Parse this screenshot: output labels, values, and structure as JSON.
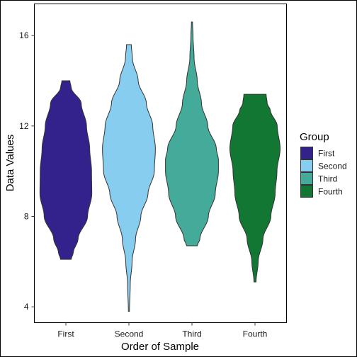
{
  "chart_data": {
    "type": "violin",
    "title": "",
    "xlabel": "Order of Sample",
    "ylabel": "Data Values",
    "ylim": [
      3.3,
      17.4
    ],
    "yticks": [
      4,
      8,
      12,
      16
    ],
    "categories": [
      "First",
      "Second",
      "Third",
      "Fourth"
    ],
    "legend": {
      "title": "Group",
      "position": "right"
    },
    "grid": false,
    "series": [
      {
        "name": "First",
        "color": "#33218C",
        "min": 6.1,
        "max": 14.0,
        "density": [
          [
            6.1,
            0.2
          ],
          [
            6.4,
            0.28
          ],
          [
            7.0,
            0.46
          ],
          [
            8.0,
            0.82
          ],
          [
            9.0,
            0.98
          ],
          [
            10.0,
            0.97
          ],
          [
            11.0,
            0.9
          ],
          [
            12.0,
            0.78
          ],
          [
            13.0,
            0.58
          ],
          [
            13.7,
            0.2
          ],
          [
            14.0,
            0.15
          ]
        ]
      },
      {
        "name": "Second",
        "color": "#87CDEF",
        "min": 3.8,
        "max": 15.6,
        "density": [
          [
            3.8,
            0.02
          ],
          [
            5.0,
            0.05
          ],
          [
            6.0,
            0.12
          ],
          [
            7.0,
            0.25
          ],
          [
            8.0,
            0.45
          ],
          [
            9.0,
            0.72
          ],
          [
            10.0,
            0.96
          ],
          [
            11.0,
            1.0
          ],
          [
            12.0,
            0.9
          ],
          [
            13.0,
            0.66
          ],
          [
            14.0,
            0.35
          ],
          [
            15.0,
            0.13
          ],
          [
            15.6,
            0.09
          ]
        ]
      },
      {
        "name": "Third",
        "color": "#44AA99",
        "min": 6.7,
        "max": 16.6,
        "density": [
          [
            6.7,
            0.2
          ],
          [
            7.0,
            0.3
          ],
          [
            8.0,
            0.62
          ],
          [
            9.0,
            0.88
          ],
          [
            10.0,
            1.0
          ],
          [
            10.5,
            1.0
          ],
          [
            11.0,
            0.92
          ],
          [
            12.0,
            0.6
          ],
          [
            13.0,
            0.36
          ],
          [
            14.0,
            0.2
          ],
          [
            15.0,
            0.08
          ],
          [
            16.0,
            0.04
          ],
          [
            16.6,
            0.02
          ]
        ]
      },
      {
        "name": "Fourth",
        "color": "#117733",
        "min": 5.1,
        "max": 13.4,
        "density": [
          [
            5.1,
            0.04
          ],
          [
            6.0,
            0.12
          ],
          [
            7.0,
            0.3
          ],
          [
            8.0,
            0.6
          ],
          [
            9.0,
            0.76
          ],
          [
            10.0,
            0.83
          ],
          [
            11.0,
            0.95
          ],
          [
            12.0,
            0.84
          ],
          [
            12.7,
            0.58
          ],
          [
            13.0,
            0.46
          ],
          [
            13.4,
            0.42
          ]
        ]
      }
    ]
  }
}
